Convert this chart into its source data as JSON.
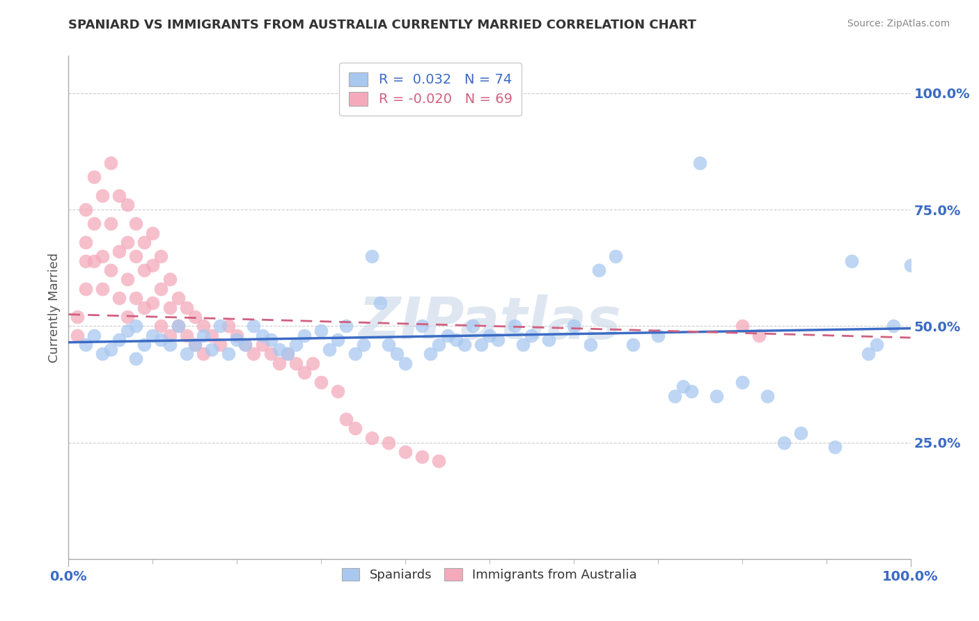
{
  "title": "SPANIARD VS IMMIGRANTS FROM AUSTRALIA CURRENTLY MARRIED CORRELATION CHART",
  "source": "Source: ZipAtlas.com",
  "ylabel": "Currently Married",
  "ytick_labels": [
    "25.0%",
    "50.0%",
    "75.0%",
    "100.0%"
  ],
  "ytick_values": [
    0.25,
    0.5,
    0.75,
    1.0
  ],
  "xtick_labels": [
    "0.0%",
    "100.0%"
  ],
  "xtick_values": [
    0.0,
    1.0
  ],
  "legend_blue_r": "R =  0.032",
  "legend_blue_n": "N = 74",
  "legend_pink_r": "R = -0.020",
  "legend_pink_n": "N = 69",
  "legend_blue_label": "Spaniards",
  "legend_pink_label": "Immigrants from Australia",
  "blue_color": "#A8C8F0",
  "pink_color": "#F4AABB",
  "blue_line_color": "#3B6BC4",
  "pink_line_color": "#D06080",
  "title_color": "#333333",
  "grid_color": "#CCCCCC",
  "watermark_color": "#C8D8E8",
  "watermark_text": "ZIPatlas",
  "blue_trend_start": 0.465,
  "blue_trend_end": 0.495,
  "pink_trend_start": 0.525,
  "pink_trend_end": 0.475,
  "blue_scatter_x": [
    0.02,
    0.03,
    0.04,
    0.05,
    0.06,
    0.07,
    0.08,
    0.08,
    0.09,
    0.1,
    0.11,
    0.12,
    0.13,
    0.14,
    0.15,
    0.16,
    0.17,
    0.18,
    0.19,
    0.2,
    0.21,
    0.22,
    0.23,
    0.24,
    0.25,
    0.26,
    0.27,
    0.28,
    0.3,
    0.31,
    0.32,
    0.33,
    0.34,
    0.35,
    0.36,
    0.37,
    0.38,
    0.39,
    0.4,
    0.42,
    0.43,
    0.44,
    0.45,
    0.46,
    0.47,
    0.48,
    0.49,
    0.5,
    0.51,
    0.53,
    0.54,
    0.55,
    0.57,
    0.6,
    0.62,
    0.63,
    0.65,
    0.67,
    0.7,
    0.72,
    0.73,
    0.74,
    0.75,
    0.77,
    0.8,
    0.83,
    0.85,
    0.87,
    0.91,
    0.93,
    0.95,
    0.96,
    0.98,
    1.0
  ],
  "blue_scatter_y": [
    0.46,
    0.48,
    0.44,
    0.45,
    0.47,
    0.49,
    0.5,
    0.43,
    0.46,
    0.48,
    0.47,
    0.46,
    0.5,
    0.44,
    0.46,
    0.48,
    0.45,
    0.5,
    0.44,
    0.47,
    0.46,
    0.5,
    0.48,
    0.47,
    0.45,
    0.44,
    0.46,
    0.48,
    0.49,
    0.45,
    0.47,
    0.5,
    0.44,
    0.46,
    0.65,
    0.55,
    0.46,
    0.44,
    0.42,
    0.5,
    0.44,
    0.46,
    0.48,
    0.47,
    0.46,
    0.5,
    0.46,
    0.48,
    0.47,
    0.5,
    0.46,
    0.48,
    0.47,
    0.5,
    0.46,
    0.62,
    0.65,
    0.46,
    0.48,
    0.35,
    0.37,
    0.36,
    0.85,
    0.35,
    0.38,
    0.35,
    0.25,
    0.27,
    0.24,
    0.64,
    0.44,
    0.46,
    0.5,
    0.63
  ],
  "pink_scatter_x": [
    0.01,
    0.01,
    0.02,
    0.02,
    0.02,
    0.02,
    0.03,
    0.03,
    0.03,
    0.04,
    0.04,
    0.04,
    0.05,
    0.05,
    0.05,
    0.06,
    0.06,
    0.06,
    0.07,
    0.07,
    0.07,
    0.07,
    0.08,
    0.08,
    0.08,
    0.09,
    0.09,
    0.09,
    0.1,
    0.1,
    0.1,
    0.11,
    0.11,
    0.11,
    0.12,
    0.12,
    0.12,
    0.13,
    0.13,
    0.14,
    0.14,
    0.15,
    0.15,
    0.16,
    0.16,
    0.17,
    0.18,
    0.19,
    0.2,
    0.21,
    0.22,
    0.23,
    0.24,
    0.25,
    0.26,
    0.27,
    0.28,
    0.29,
    0.3,
    0.32,
    0.33,
    0.34,
    0.36,
    0.38,
    0.4,
    0.42,
    0.44,
    0.8,
    0.82
  ],
  "pink_scatter_y": [
    0.52,
    0.48,
    0.75,
    0.68,
    0.64,
    0.58,
    0.82,
    0.72,
    0.64,
    0.78,
    0.65,
    0.58,
    0.85,
    0.72,
    0.62,
    0.78,
    0.66,
    0.56,
    0.76,
    0.68,
    0.6,
    0.52,
    0.72,
    0.65,
    0.56,
    0.68,
    0.62,
    0.54,
    0.7,
    0.63,
    0.55,
    0.65,
    0.58,
    0.5,
    0.6,
    0.54,
    0.48,
    0.56,
    0.5,
    0.54,
    0.48,
    0.52,
    0.46,
    0.5,
    0.44,
    0.48,
    0.46,
    0.5,
    0.48,
    0.46,
    0.44,
    0.46,
    0.44,
    0.42,
    0.44,
    0.42,
    0.4,
    0.42,
    0.38,
    0.36,
    0.3,
    0.28,
    0.26,
    0.25,
    0.23,
    0.22,
    0.21,
    0.5,
    0.48
  ]
}
